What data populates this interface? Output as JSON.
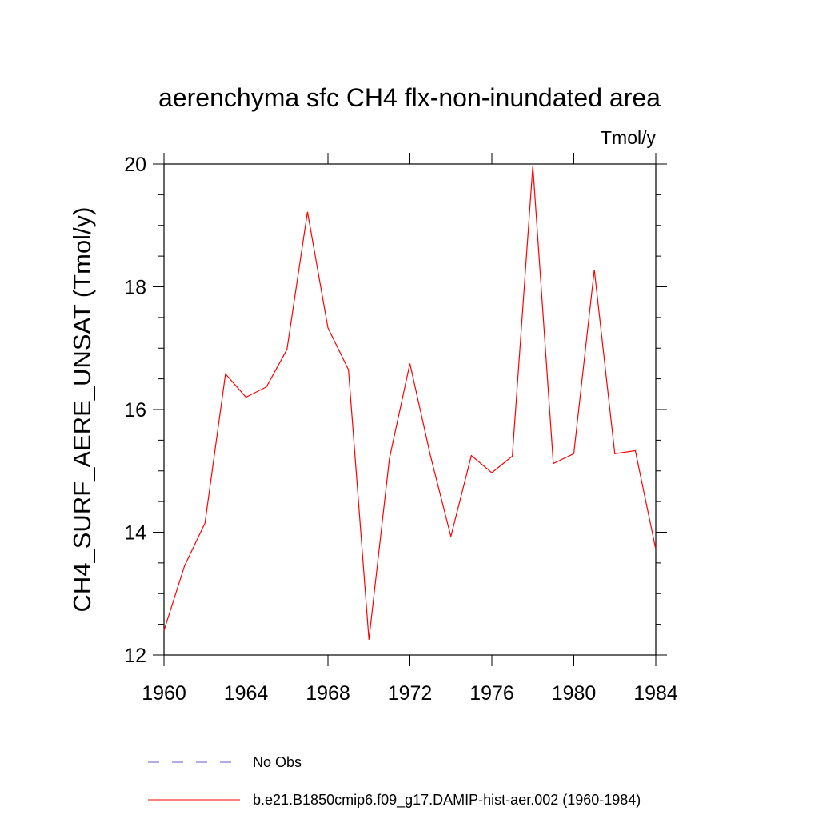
{
  "chart_data": {
    "type": "line",
    "title": "aerenchyma sfc CH4 flx-non-inundated area",
    "units_label": "Tmol/y",
    "xlabel": "",
    "ylabel": "CH4_SURF_AERE_UNSAT  (Tmol/y)",
    "xlim": [
      1960,
      1984
    ],
    "ylim": [
      12,
      20
    ],
    "x_ticks": [
      1960,
      1964,
      1968,
      1972,
      1976,
      1980,
      1984
    ],
    "y_ticks": [
      12,
      14,
      16,
      18,
      20
    ],
    "grid": false,
    "legend_position": "bottom",
    "x": [
      1960,
      1961,
      1962,
      1963,
      1964,
      1965,
      1966,
      1967,
      1968,
      1969,
      1970,
      1971,
      1972,
      1973,
      1974,
      1975,
      1976,
      1977,
      1978,
      1979,
      1980,
      1981,
      1982,
      1983,
      1984
    ],
    "series": [
      {
        "name": "b.e21.B1850cmip6.f09_g17.DAMIP-hist-aer.002 (1960-1984)",
        "color": "#ff0000",
        "style": "solid",
        "values": [
          12.4,
          13.45,
          14.15,
          16.58,
          16.2,
          16.37,
          16.98,
          19.22,
          17.33,
          16.65,
          12.25,
          15.2,
          16.75,
          15.25,
          13.93,
          15.25,
          14.97,
          15.24,
          19.97,
          15.12,
          15.28,
          18.28,
          15.28,
          15.33,
          13.72
        ]
      }
    ],
    "legend": [
      {
        "label": "No Obs",
        "color": "#6a5acd",
        "style": "dashed"
      },
      {
        "label": "b.e21.B1850cmip6.f09_g17.DAMIP-hist-aer.002 (1960-1984)",
        "color": "#ff0000",
        "style": "solid"
      }
    ]
  }
}
